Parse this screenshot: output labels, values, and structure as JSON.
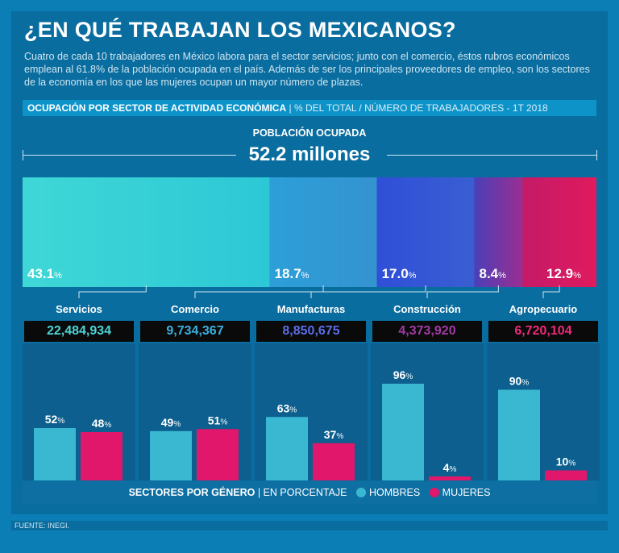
{
  "header": {
    "title": "¿EN QUÉ TRABAJAN LOS MEXICANOS?",
    "intro": "Cuatro de cada 10 trabajadores en México labora para el sector servicios; junto con el comercio, éstos rubros económicos emplean al 61.8% de la población ocupada en el país. Además de ser los principales proveedores de empleo, son los sectores de la economía en los que las mujeres ocupan un mayor número de plazas.",
    "subtitle_bold": "OCUPACIÓN POR SECTOR DE ACTIVIDAD ECONÓMICA",
    "subtitle_rest": "% DEL TOTAL  /  NÚMERO DE TRABAJADORES - 1T  2018"
  },
  "population": {
    "label": "POBLACIÓN OCUPADA",
    "total": "52.2 millones"
  },
  "legend": {
    "title": "SECTORES POR GÉNERO",
    "unit": "EN PORCENTAJE",
    "men_label": "HOMBRES",
    "women_label": "MUJERES"
  },
  "source": "FUENTE: INEGI.",
  "colors": {
    "hombres": "#3ab8d2",
    "mujeres": "#e0176a"
  },
  "chart_data": [
    {
      "type": "bar",
      "title": "Ocupación por sector de actividad económica (% del total)",
      "categories": [
        "Servicios",
        "Comercio",
        "Manufacturas",
        "Construcción",
        "Agropecuario"
      ],
      "values": [
        43.1,
        18.7,
        17.0,
        8.4,
        12.9
      ],
      "labels": [
        "43.1",
        "18.7",
        "17.0",
        "8.4",
        "12.9"
      ],
      "workers": [
        "22,484,934",
        "9,734,367",
        "8,850,675",
        "4,373,920",
        "6,720,104"
      ],
      "colors": [
        "#35d0d6",
        "#2aa3d3",
        "#3a50d8",
        "#7a2b9a",
        "#d41a63"
      ],
      "label_colors": [
        "#4ed4d8",
        "#3ab0de",
        "#5b6ee6",
        "#a23aa6",
        "#f0287a"
      ]
    },
    {
      "type": "bar",
      "title": "Sectores por género (en porcentaje)",
      "categories": [
        "Servicios",
        "Comercio",
        "Manufacturas",
        "Construcción",
        "Agropecuario"
      ],
      "series": [
        {
          "name": "HOMBRES",
          "values": [
            52,
            49,
            63,
            96,
            90
          ]
        },
        {
          "name": "MUJERES",
          "values": [
            48,
            51,
            37,
            4,
            10
          ]
        }
      ],
      "ylim": [
        0,
        100
      ]
    }
  ]
}
